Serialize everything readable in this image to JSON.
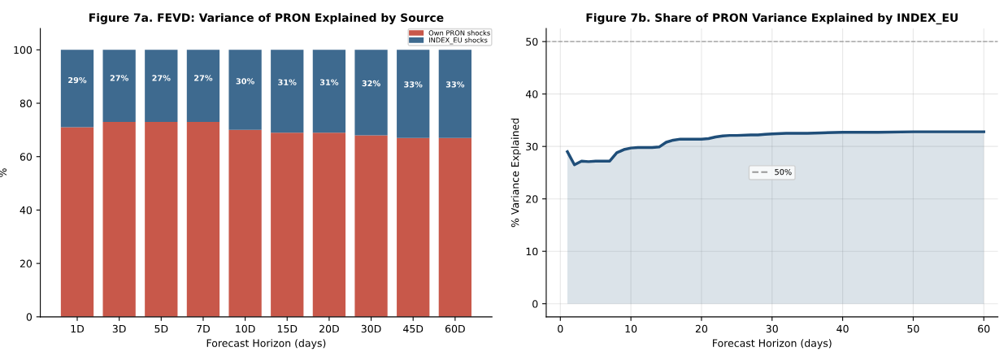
{
  "chart_data": [
    {
      "type": "bar",
      "title": "Figure 7a. FEVD: Variance of PRON Explained by Source",
      "xlabel": "Forecast Horizon (days)",
      "ylabel": "%",
      "categories": [
        "1D",
        "3D",
        "5D",
        "7D",
        "10D",
        "15D",
        "20D",
        "30D",
        "45D",
        "60D"
      ],
      "stacked": true,
      "ylim": [
        0,
        108
      ],
      "yticks": [
        0,
        20,
        40,
        60,
        80,
        100
      ],
      "grid": false,
      "legend": "top right",
      "series": [
        {
          "name": "Own PRON shocks",
          "color": "#c8584a",
          "values": [
            71,
            73,
            73,
            73,
            70,
            69,
            69,
            68,
            67,
            67
          ]
        },
        {
          "name": "INDEX_EU shocks",
          "color": "#3e6a8f",
          "values": [
            29,
            27,
            27,
            27,
            30,
            31,
            31,
            32,
            33,
            33
          ],
          "value_labels": [
            "29%",
            "27%",
            "27%",
            "27%",
            "30%",
            "31%",
            "31%",
            "32%",
            "33%",
            "33%"
          ]
        }
      ]
    },
    {
      "type": "area",
      "title": "Figure 7b. Share of PRON Variance Explained by INDEX_EU",
      "xlabel": "Forecast Horizon (days)",
      "ylabel": "% Variance Explained",
      "xlim": [
        -2,
        62
      ],
      "xticks": [
        0,
        10,
        20,
        30,
        40,
        50,
        60
      ],
      "ylim": [
        -2.5,
        52.5
      ],
      "yticks": [
        0,
        10,
        20,
        30,
        40,
        50
      ],
      "grid": true,
      "legend": "center",
      "ref_lines": [
        {
          "axis": "y",
          "value": 50,
          "label": "50%",
          "color": "#999999",
          "line_style": "dashed"
        }
      ],
      "series": [
        {
          "color": "#1f4e79",
          "x": [
            1,
            2,
            3,
            4,
            5,
            6,
            7,
            8,
            9,
            10,
            11,
            12,
            13,
            14,
            15,
            16,
            17,
            18,
            19,
            20,
            21,
            22,
            23,
            24,
            25,
            27,
            28,
            29,
            30,
            32,
            35,
            37,
            40,
            45,
            50,
            55,
            60
          ],
          "values": [
            29,
            26.5,
            27.2,
            27.1,
            27.2,
            27.2,
            27.2,
            28.8,
            29.4,
            29.7,
            29.8,
            29.8,
            29.8,
            29.9,
            30.8,
            31.2,
            31.4,
            31.4,
            31.4,
            31.4,
            31.5,
            31.8,
            32.0,
            32.1,
            32.1,
            32.2,
            32.2,
            32.3,
            32.4,
            32.5,
            32.5,
            32.6,
            32.7,
            32.7,
            32.8,
            32.8,
            32.8
          ]
        }
      ]
    }
  ]
}
